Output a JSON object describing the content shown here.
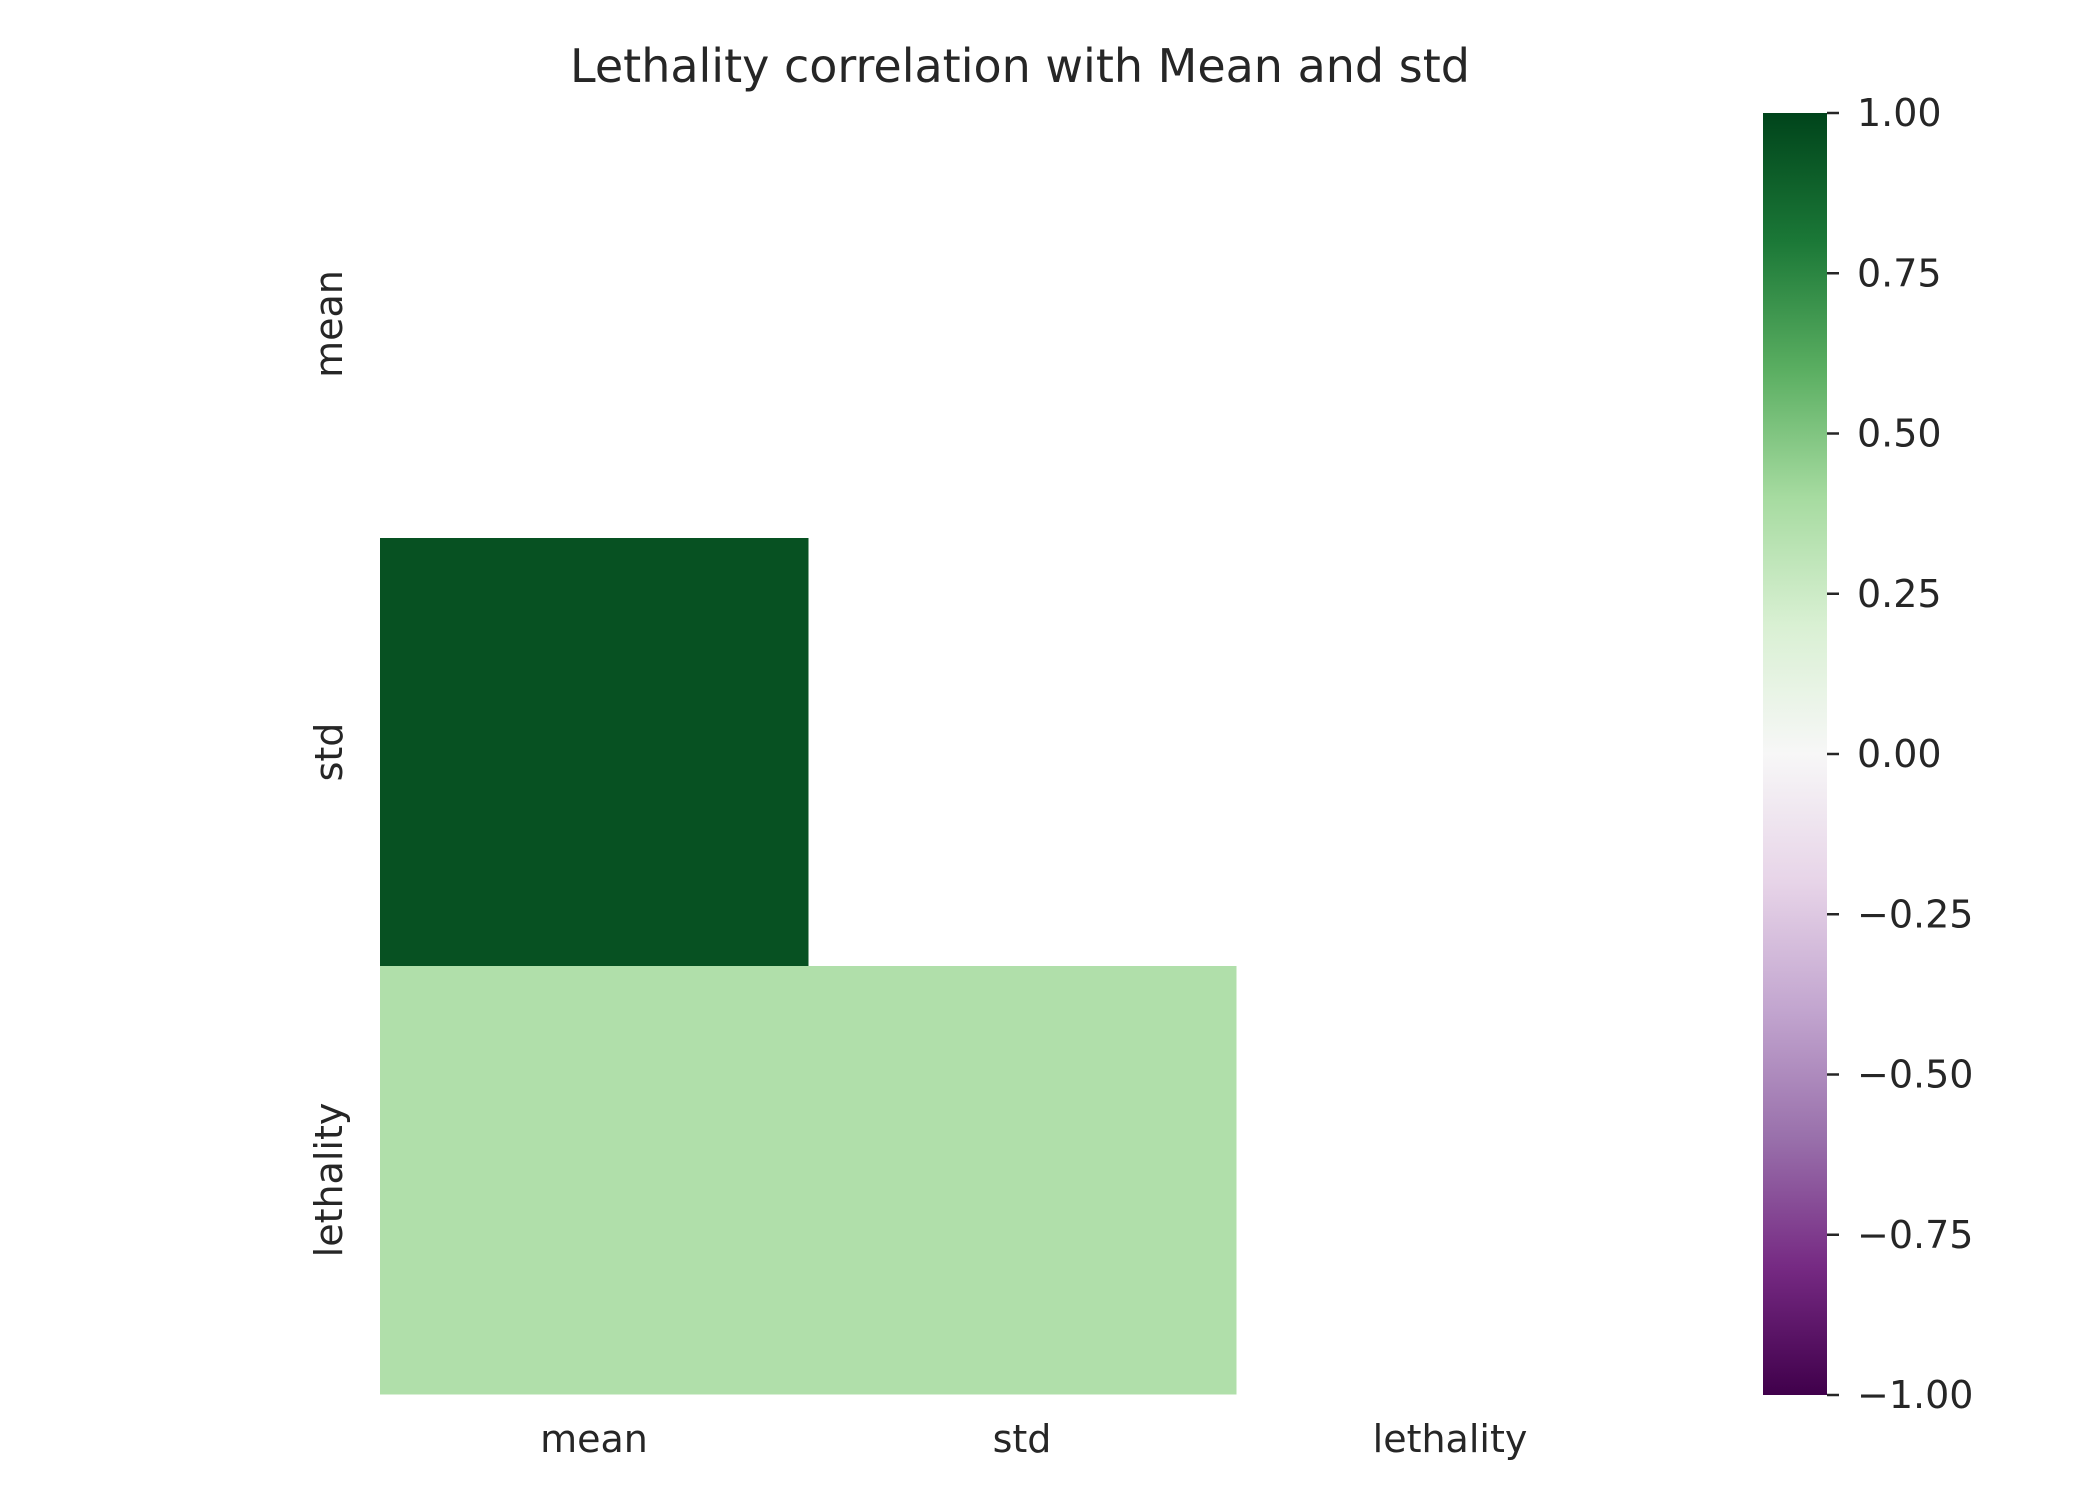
{
  "chart_data": {
    "type": "heatmap",
    "title": "Lethality correlation with Mean and std",
    "x_categories": [
      "mean",
      "std",
      "lethality"
    ],
    "y_categories": [
      "mean",
      "std",
      "lethality"
    ],
    "mask": "upper-triangle-including-diagonal",
    "cells": [
      {
        "row": "std",
        "col": "mean",
        "value": 0.95
      },
      {
        "row": "lethality",
        "col": "mean",
        "value": 0.36
      },
      {
        "row": "lethality",
        "col": "std",
        "value": 0.36
      }
    ],
    "colormap": "PRGn",
    "colormap_stops": [
      "#40004b",
      "#762a83",
      "#9970ab",
      "#c2a5cf",
      "#e7d4e8",
      "#f7f7f7",
      "#d9f0d3",
      "#a6dba0",
      "#5aae61",
      "#1b7837",
      "#00441b"
    ],
    "vmin": -1.0,
    "vmax": 1.0,
    "colorbar_ticks": [
      "1.00",
      "0.75",
      "0.50",
      "0.25",
      "0.00",
      "−0.25",
      "−0.50",
      "−0.75",
      "−1.00"
    ],
    "colorbar_tick_values": [
      1.0,
      0.75,
      0.5,
      0.25,
      0.0,
      -0.25,
      -0.5,
      -0.75,
      -1.0
    ],
    "grid": false,
    "legend": "colorbar-right"
  }
}
